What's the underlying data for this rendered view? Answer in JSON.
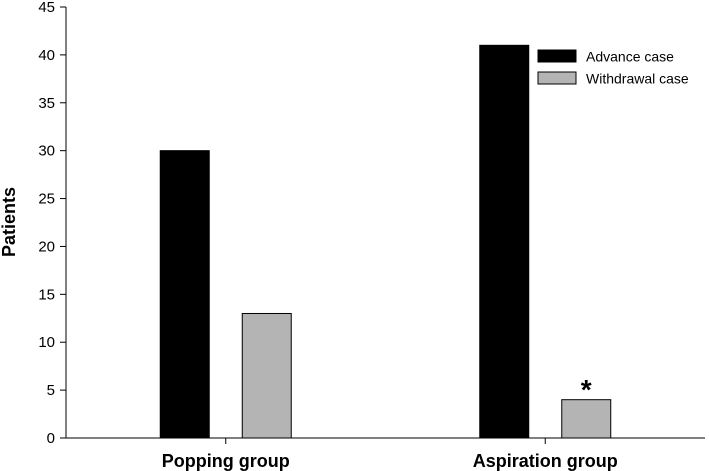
{
  "chart_data": {
    "type": "bar",
    "categories": [
      "Popping group",
      "Aspiration group"
    ],
    "series": [
      {
        "name": "Advance case",
        "values": [
          30,
          41
        ],
        "color": "#000000"
      },
      {
        "name": "Withdrawal case",
        "values": [
          13,
          4
        ],
        "color": "#b4b4b4"
      }
    ],
    "ylabel": "Patients",
    "xlabel": "",
    "ylim": [
      0,
      45
    ],
    "yticks": [
      0,
      5,
      10,
      15,
      20,
      25,
      30,
      35,
      40,
      45
    ],
    "legend_position": "top-right",
    "grid": false,
    "annotations": [
      {
        "text": "*",
        "category": "Aspiration group",
        "series": "Withdrawal case"
      }
    ]
  }
}
